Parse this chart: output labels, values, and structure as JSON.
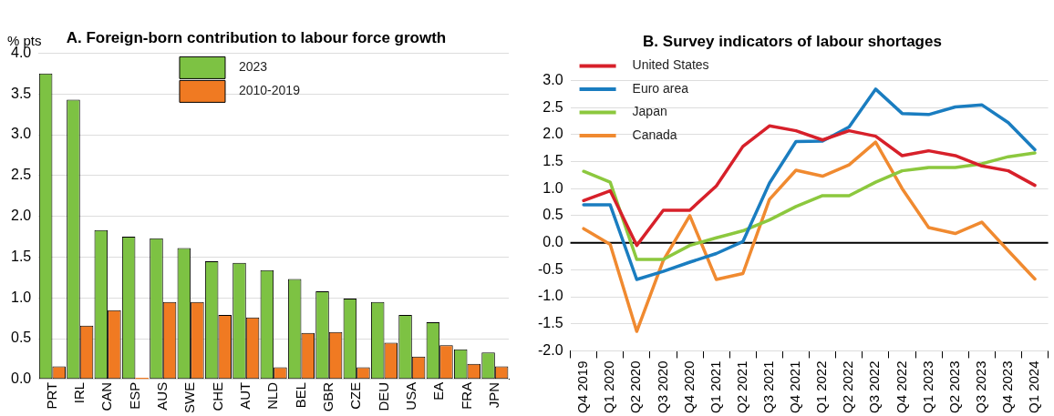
{
  "chart_data": [
    {
      "type": "bar",
      "title": "A. Foreign-born contribution to labour force growth",
      "ylabel": "% pts",
      "categories": [
        "PRT",
        "IRL",
        "CAN",
        "ESP",
        "AUS",
        "SWE",
        "CHE",
        "AUT",
        "NLD",
        "BEL",
        "GBR",
        "CZE",
        "DEU",
        "USA",
        "EA",
        "FRA",
        "JPN"
      ],
      "series": [
        {
          "name": "2023",
          "color": "#7dc243",
          "values": [
            3.75,
            3.43,
            1.83,
            1.75,
            1.73,
            1.61,
            1.45,
            1.43,
            1.34,
            1.23,
            1.08,
            0.99,
            0.95,
            0.79,
            0.7,
            0.37,
            0.33
          ]
        },
        {
          "name": "2010-2019",
          "color": "#f07a22",
          "values": [
            0.16,
            0.66,
            0.85,
            0.02,
            0.95,
            0.95,
            0.79,
            0.76,
            0.15,
            0.57,
            0.58,
            0.15,
            0.45,
            0.28,
            0.42,
            0.19,
            0.16
          ]
        }
      ],
      "ylim": [
        0,
        4
      ],
      "yticks": [
        {
          "value": 0,
          "label": "0.0"
        },
        {
          "value": 0.5,
          "label": "0.5"
        },
        {
          "value": 1,
          "label": "1.0"
        },
        {
          "value": 1.5,
          "label": "1.5"
        },
        {
          "value": 2,
          "label": "2.0"
        },
        {
          "value": 2.5,
          "label": "2.5"
        },
        {
          "value": 3,
          "label": "3.0"
        },
        {
          "value": 3.5,
          "label": "3.5"
        },
        {
          "value": 4,
          "label": "4.0"
        }
      ],
      "grid": "y",
      "legend": "top"
    },
    {
      "type": "line",
      "title": "B. Survey indicators of labour shortages",
      "categories": [
        "Q4 2019",
        "Q1 2020",
        "Q2 2020",
        "Q3 2020",
        "Q4 2020",
        "Q1 2021",
        "Q2 2021",
        "Q3 2021",
        "Q4 2021",
        "Q1 2022",
        "Q2 2022",
        "Q3 2022",
        "Q4 2022",
        "Q1 2023",
        "Q2 2023",
        "Q3 2023",
        "Q4 2023",
        "Q1 2024"
      ],
      "series": [
        {
          "name": "United States",
          "color": "#d7202a",
          "values": [
            0.78,
            0.96,
            -0.05,
            0.6,
            0.6,
            1.05,
            1.78,
            2.16,
            2.07,
            1.9,
            2.07,
            1.97,
            1.61,
            1.7,
            1.61,
            1.42,
            1.33,
            1.06
          ]
        },
        {
          "name": "Euro area",
          "color": "#1a7dc0",
          "values": [
            0.7,
            0.7,
            -0.68,
            -0.53,
            -0.36,
            -0.2,
            0.02,
            1.1,
            1.87,
            1.88,
            2.14,
            2.84,
            2.39,
            2.37,
            2.51,
            2.55,
            2.22,
            1.72
          ]
        },
        {
          "name": "Japan",
          "color": "#8cc83e",
          "values": [
            1.32,
            1.12,
            -0.31,
            -0.31,
            -0.05,
            0.09,
            0.22,
            0.42,
            0.67,
            0.87,
            0.87,
            1.12,
            1.33,
            1.39,
            1.39,
            1.46,
            1.59,
            1.66
          ]
        },
        {
          "name": "Canada",
          "color": "#f08a30",
          "values": [
            0.26,
            -0.03,
            -1.64,
            -0.33,
            0.5,
            -0.68,
            -0.57,
            0.8,
            1.34,
            1.23,
            1.44,
            1.86,
            1.0,
            0.28,
            0.17,
            0.38,
            -0.15,
            -0.67
          ]
        }
      ],
      "ylim": [
        -2,
        3
      ],
      "yticks": [
        {
          "value": -2,
          "label": "-2.0"
        },
        {
          "value": -1.5,
          "label": "-1.5"
        },
        {
          "value": -1,
          "label": "-1.0"
        },
        {
          "value": -0.5,
          "label": "-0.5"
        },
        {
          "value": 0,
          "label": "0.0"
        },
        {
          "value": 0.5,
          "label": "0.5"
        },
        {
          "value": 1,
          "label": "1.0"
        },
        {
          "value": 1.5,
          "label": "1.5"
        },
        {
          "value": 2,
          "label": "2.0"
        },
        {
          "value": 2.5,
          "label": "2.5"
        },
        {
          "value": 3,
          "label": "3.0"
        }
      ],
      "grid": "y",
      "legend": "top left",
      "marker": "none",
      "line_style": "solid",
      "ref_lines": [
        {
          "axis": "y",
          "value": 0,
          "color": "#000000"
        }
      ]
    }
  ]
}
